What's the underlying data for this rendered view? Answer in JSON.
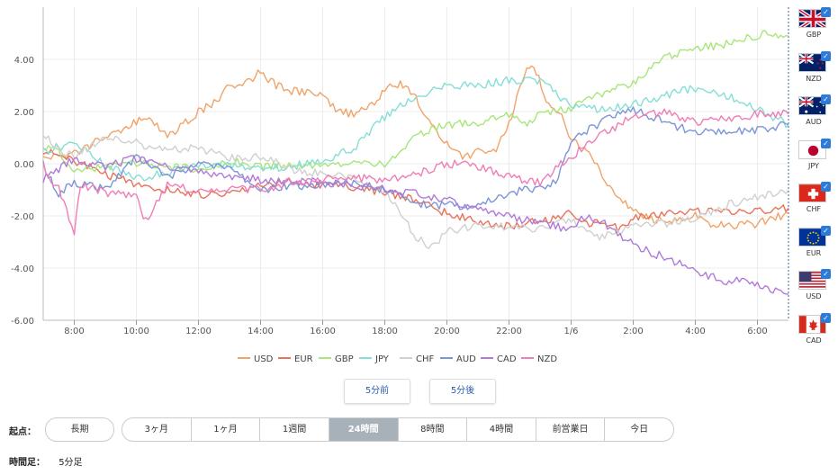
{
  "chart_data": {
    "type": "line",
    "title": "",
    "xlabel": "",
    "ylabel": "",
    "ylim": [
      -6.0,
      6.0
    ],
    "yticks": [
      4.0,
      2.0,
      0.0,
      -2.0,
      -4.0,
      -6.0
    ],
    "ytick_labels": [
      "4.00",
      "2.00",
      "0.00",
      "-2.00",
      "-4.00",
      "-6.00"
    ],
    "x_range": [
      7.0,
      31.0
    ],
    "xticks": [
      8,
      10,
      12,
      14,
      16,
      18,
      20,
      22,
      24,
      26,
      28,
      30
    ],
    "xtick_labels": [
      "8:00",
      "10:00",
      "12:00",
      "14:00",
      "16:00",
      "18:00",
      "20:00",
      "22:00",
      "1/6",
      "2:00",
      "4:00",
      "6:00"
    ],
    "grid": true,
    "legend_position": "bottom",
    "series": [
      {
        "name": "USD",
        "color": "#f0a36a",
        "points": [
          [
            7,
            0.2
          ],
          [
            8,
            0.4
          ],
          [
            9,
            1.0
          ],
          [
            10,
            1.6
          ],
          [
            10.5,
            1.7
          ],
          [
            11,
            1.0
          ],
          [
            12,
            2.0
          ],
          [
            12.5,
            2.3
          ],
          [
            13,
            3.0
          ],
          [
            13.5,
            3.1
          ],
          [
            14,
            3.5
          ],
          [
            14.5,
            3.0
          ],
          [
            15,
            2.8
          ],
          [
            15.5,
            2.7
          ],
          [
            16,
            2.6
          ],
          [
            16.5,
            2.0
          ],
          [
            17,
            1.9
          ],
          [
            17.5,
            2.2
          ],
          [
            18,
            2.8
          ],
          [
            18.5,
            3.1
          ],
          [
            19,
            2.6
          ],
          [
            19.5,
            1.4
          ],
          [
            20,
            0.8
          ],
          [
            20.5,
            0.2
          ],
          [
            21,
            0.5
          ],
          [
            21.5,
            0.4
          ],
          [
            22,
            1.5
          ],
          [
            22.5,
            3.5
          ],
          [
            22.8,
            3.8
          ],
          [
            23.2,
            2.5
          ],
          [
            23.7,
            1.8
          ],
          [
            24,
            0.9
          ],
          [
            24.5,
            0.6
          ],
          [
            25,
            -0.5
          ],
          [
            25.5,
            -1.3
          ],
          [
            26,
            -1.8
          ],
          [
            26.5,
            -2.1
          ],
          [
            27,
            -2.2
          ],
          [
            28,
            -2.0
          ],
          [
            28.5,
            -2.3
          ],
          [
            29,
            -2.4
          ],
          [
            30,
            -2.3
          ],
          [
            31,
            -1.9
          ]
        ]
      },
      {
        "name": "EUR",
        "color": "#e8735a",
        "points": [
          [
            7,
            0.5
          ],
          [
            8,
            0.1
          ],
          [
            9,
            -0.4
          ],
          [
            10,
            -0.8
          ],
          [
            11,
            -1.0
          ],
          [
            12,
            -1.2
          ],
          [
            13,
            -1.1
          ],
          [
            14,
            -0.8
          ],
          [
            15,
            -0.7
          ],
          [
            16,
            -0.8
          ],
          [
            17,
            -0.9
          ],
          [
            18,
            -1.1
          ],
          [
            19,
            -1.4
          ],
          [
            20,
            -1.9
          ],
          [
            21,
            -2.2
          ],
          [
            22,
            -2.4
          ],
          [
            23,
            -2.2
          ],
          [
            24,
            -1.9
          ],
          [
            24.5,
            -2.3
          ],
          [
            25,
            -2.2
          ],
          [
            25.5,
            -2.5
          ],
          [
            26,
            -2.1
          ],
          [
            27,
            -1.9
          ],
          [
            28,
            -1.8
          ],
          [
            29,
            -1.9
          ],
          [
            30,
            -1.8
          ],
          [
            31,
            -1.7
          ]
        ]
      },
      {
        "name": "GBP",
        "color": "#a8e67a",
        "points": [
          [
            7,
            0.6
          ],
          [
            7.5,
            0.5
          ],
          [
            8,
            -0.3
          ],
          [
            9,
            -0.1
          ],
          [
            10,
            0.0
          ],
          [
            11,
            -0.1
          ],
          [
            12,
            -0.2
          ],
          [
            13,
            0.1
          ],
          [
            14,
            -0.1
          ],
          [
            15,
            0.0
          ],
          [
            16,
            -0.1
          ],
          [
            17,
            0.0
          ],
          [
            17.5,
            0.1
          ],
          [
            18,
            -0.1
          ],
          [
            19,
            1.1
          ],
          [
            20,
            1.5
          ],
          [
            21,
            1.6
          ],
          [
            22,
            1.9
          ],
          [
            22.5,
            1.5
          ],
          [
            23,
            1.9
          ],
          [
            24,
            2.1
          ],
          [
            25,
            2.7
          ],
          [
            26,
            3.1
          ],
          [
            26.5,
            3.6
          ],
          [
            27,
            4.1
          ],
          [
            28,
            4.4
          ],
          [
            29,
            4.6
          ],
          [
            30,
            4.9
          ],
          [
            30.5,
            5.0
          ],
          [
            31,
            4.9
          ]
        ]
      },
      {
        "name": "JPY",
        "color": "#86ded8",
        "points": [
          [
            7,
            0.5
          ],
          [
            8,
            0.8
          ],
          [
            9,
            0.0
          ],
          [
            10,
            -0.6
          ],
          [
            11,
            -0.3
          ],
          [
            12,
            -0.1
          ],
          [
            13,
            0.0
          ],
          [
            14,
            -0.2
          ],
          [
            15,
            -0.1
          ],
          [
            16,
            0.1
          ],
          [
            17,
            0.6
          ],
          [
            18,
            1.8
          ],
          [
            19,
            2.6
          ],
          [
            20,
            3.0
          ],
          [
            21,
            3.0
          ],
          [
            22,
            3.2
          ],
          [
            23,
            3.2
          ],
          [
            24,
            2.2
          ],
          [
            25,
            2.1
          ],
          [
            26,
            2.3
          ],
          [
            27,
            2.6
          ],
          [
            28,
            2.9
          ],
          [
            29,
            2.6
          ],
          [
            30,
            2.1
          ],
          [
            31,
            1.5
          ]
        ]
      },
      {
        "name": "CHF",
        "color": "#d0d0d0",
        "points": [
          [
            7,
            1.2
          ],
          [
            7.5,
            0.5
          ],
          [
            8,
            0.3
          ],
          [
            9,
            1.0
          ],
          [
            10,
            0.8
          ],
          [
            11,
            0.5
          ],
          [
            12,
            0.6
          ],
          [
            13,
            0.2
          ],
          [
            14,
            0.3
          ],
          [
            15,
            -0.2
          ],
          [
            16,
            -0.4
          ],
          [
            17,
            -0.6
          ],
          [
            18,
            -1.0
          ],
          [
            19,
            -2.8
          ],
          [
            19.5,
            -3.2
          ],
          [
            20,
            -2.6
          ],
          [
            21,
            -2.4
          ],
          [
            22,
            -2.4
          ],
          [
            23,
            -2.5
          ],
          [
            24,
            -2.1
          ],
          [
            24.5,
            -2.7
          ],
          [
            25,
            -2.8
          ],
          [
            26,
            -2.4
          ],
          [
            27,
            -2.3
          ],
          [
            28,
            -2.1
          ],
          [
            29,
            -1.6
          ],
          [
            30,
            -1.3
          ],
          [
            31,
            -1.0
          ]
        ]
      },
      {
        "name": "AUD",
        "color": "#7b95d6",
        "points": [
          [
            7,
            0.0
          ],
          [
            7.5,
            -1.2
          ],
          [
            8,
            -0.7
          ],
          [
            9,
            -1.0
          ],
          [
            10,
            0.3
          ],
          [
            11,
            -0.5
          ],
          [
            12,
            0.0
          ],
          [
            13,
            -0.2
          ],
          [
            14,
            -1.0
          ],
          [
            15,
            -0.8
          ],
          [
            16,
            -0.9
          ],
          [
            17,
            -0.7
          ],
          [
            18,
            -1.0
          ],
          [
            19,
            -1.5
          ],
          [
            20,
            -1.6
          ],
          [
            21,
            -1.6
          ],
          [
            22,
            -1.1
          ],
          [
            23,
            -0.9
          ],
          [
            23.5,
            -0.7
          ],
          [
            24,
            0.9
          ],
          [
            25,
            1.6
          ],
          [
            25.5,
            1.9
          ],
          [
            26,
            2.1
          ],
          [
            27,
            1.6
          ],
          [
            28,
            1.2
          ],
          [
            29,
            1.2
          ],
          [
            30,
            1.3
          ],
          [
            31,
            1.5
          ]
        ]
      },
      {
        "name": "CAD",
        "color": "#b17ad9",
        "points": [
          [
            7,
            -0.6
          ],
          [
            8,
            0.2
          ],
          [
            9,
            -0.1
          ],
          [
            10,
            0.2
          ],
          [
            11,
            -0.1
          ],
          [
            12,
            -0.3
          ],
          [
            13,
            -0.5
          ],
          [
            14,
            -0.6
          ],
          [
            15,
            -0.7
          ],
          [
            16,
            -0.7
          ],
          [
            17,
            -0.8
          ],
          [
            18,
            -1.0
          ],
          [
            19,
            -1.1
          ],
          [
            20,
            -1.4
          ],
          [
            21,
            -1.8
          ],
          [
            22,
            -2.0
          ],
          [
            23,
            -2.3
          ],
          [
            24,
            -2.5
          ],
          [
            24.5,
            -2.0
          ],
          [
            25,
            -2.2
          ],
          [
            25.5,
            -2.7
          ],
          [
            26,
            -3.1
          ],
          [
            27,
            -3.6
          ],
          [
            28,
            -4.1
          ],
          [
            29,
            -4.5
          ],
          [
            29.5,
            -4.5
          ],
          [
            30,
            -4.7
          ],
          [
            31,
            -5.0
          ]
        ]
      },
      {
        "name": "NZD",
        "color": "#ef7eb8",
        "points": [
          [
            7,
            -0.1
          ],
          [
            7.5,
            -1.0
          ],
          [
            8,
            -2.6
          ],
          [
            8.2,
            -0.8
          ],
          [
            9,
            -1.1
          ],
          [
            10,
            -1.3
          ],
          [
            10.3,
            -2.2
          ],
          [
            11,
            -0.8
          ],
          [
            12,
            -1.1
          ],
          [
            13,
            -0.9
          ],
          [
            14,
            -1.0
          ],
          [
            15,
            -0.7
          ],
          [
            16,
            -0.6
          ],
          [
            17,
            -0.5
          ],
          [
            18,
            -0.7
          ],
          [
            19,
            -0.4
          ],
          [
            20,
            0.0
          ],
          [
            21,
            -0.1
          ],
          [
            22,
            -0.5
          ],
          [
            23,
            -0.7
          ],
          [
            24,
            0.3
          ],
          [
            25,
            1.1
          ],
          [
            26,
            1.8
          ],
          [
            27,
            2.0
          ],
          [
            28,
            1.6
          ],
          [
            29,
            1.7
          ],
          [
            30,
            1.9
          ],
          [
            31,
            1.9
          ]
        ]
      }
    ]
  },
  "flags": [
    {
      "code": "GBP",
      "icon": "uk-flag-icon"
    },
    {
      "code": "NZD",
      "icon": "nz-flag-icon"
    },
    {
      "code": "AUD",
      "icon": "au-flag-icon"
    },
    {
      "code": "JPY",
      "icon": "jp-flag-icon"
    },
    {
      "code": "CHF",
      "icon": "ch-flag-icon"
    },
    {
      "code": "EUR",
      "icon": "eu-flag-icon"
    },
    {
      "code": "USD",
      "icon": "us-flag-icon"
    },
    {
      "code": "CAD",
      "icon": "ca-flag-icon"
    }
  ],
  "nav": {
    "prev_label": "5分前",
    "next_label": "5分後"
  },
  "start": {
    "label": "起点：",
    "long_label": "長期",
    "periods": [
      "3ヶ月",
      "1ヶ月",
      "1週間",
      "24時間",
      "8時間",
      "4時間",
      "前営業日",
      "今日"
    ],
    "active": "24時間"
  },
  "timeframe": {
    "label": "時間足：",
    "value": "5分足"
  }
}
